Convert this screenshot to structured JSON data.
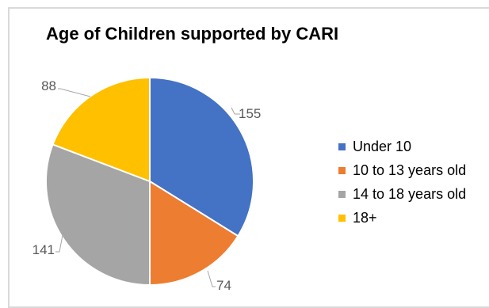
{
  "chart_data": {
    "type": "pie",
    "title": "Age of Children supported by CARI",
    "categories": [
      "Under 10",
      "10 to 13 years old",
      "14 to 18 years old",
      "18+"
    ],
    "values": [
      155,
      74,
      141,
      88
    ],
    "colors": [
      "#4472C4",
      "#ED7D31",
      "#A5A5A5",
      "#FFC000"
    ],
    "start_angle_deg": 0,
    "direction": "clockwise",
    "legend_position": "right",
    "data_labels": [
      "155",
      "74",
      "141",
      "88"
    ]
  }
}
